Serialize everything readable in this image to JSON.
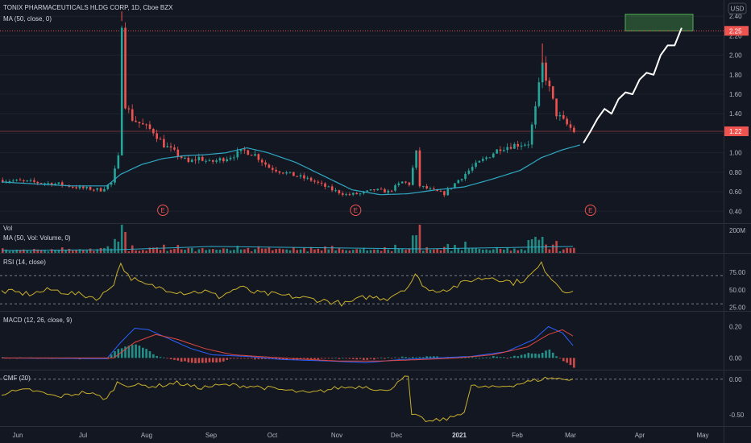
{
  "header": {
    "symbol_line": "TONIX PHARMACEUTICALS HLDG CORP, 1D, Cboe BZX",
    "ma_line": "MA (50, close, 0)",
    "currency": "USD"
  },
  "colors": {
    "up": "#26a69a",
    "down": "#ef5350",
    "ma": "#2fa8c2",
    "rsi": "#c9b02c",
    "macd": "#2962ff",
    "signal": "#e0473f",
    "cmf": "#c9b02c",
    "bg": "#131722",
    "grid": "#1e222d"
  },
  "chart_data": [
    {
      "type": "candlestick",
      "name_label": "TONIX PHARMACEUTICALS HLDG CORP, 1D, Cboe BZX",
      "y_ticks": [
        "2.40",
        "2.20",
        "2.00",
        "1.80",
        "1.60",
        "1.40",
        "1.20",
        "1.00",
        "0.80",
        "0.60",
        "0.40"
      ],
      "ylim": [
        0.32,
        2.5
      ],
      "price_labels": [
        "2.25",
        "1.22"
      ],
      "target_box": [
        2.25,
        2.42
      ],
      "earnings_markers": [
        "E",
        "E",
        "E"
      ],
      "x_ticks": [
        "Jun",
        "Jul",
        "Aug",
        "Sep",
        "Oct",
        "Nov",
        "Dec",
        "2021",
        "Feb",
        "Mar",
        "Apr",
        "May"
      ],
      "price_path": [
        [
          0,
          0.72
        ],
        [
          8,
          0.7
        ],
        [
          16,
          0.68
        ],
        [
          22,
          0.64
        ],
        [
          28,
          0.62
        ],
        [
          31,
          0.69
        ],
        [
          33,
          0.95
        ],
        [
          34,
          2.35
        ],
        [
          35,
          1.5
        ],
        [
          37,
          1.35
        ],
        [
          40,
          1.28
        ],
        [
          43,
          1.22
        ],
        [
          46,
          1.08
        ],
        [
          50,
          0.98
        ],
        [
          53,
          0.9
        ],
        [
          56,
          0.95
        ],
        [
          59,
          0.9
        ],
        [
          64,
          0.95
        ],
        [
          69,
          1.02
        ],
        [
          72,
          0.98
        ],
        [
          76,
          0.85
        ],
        [
          82,
          0.78
        ],
        [
          88,
          0.72
        ],
        [
          94,
          0.62
        ],
        [
          98,
          0.57
        ],
        [
          102,
          0.58
        ],
        [
          106,
          0.62
        ],
        [
          110,
          0.6
        ],
        [
          114,
          0.7
        ],
        [
          116,
          0.68
        ],
        [
          118,
          1.0
        ],
        [
          119,
          0.66
        ],
        [
          122,
          0.62
        ],
        [
          126,
          0.58
        ],
        [
          130,
          0.72
        ],
        [
          134,
          0.85
        ],
        [
          138,
          0.95
        ],
        [
          142,
          1.05
        ],
        [
          146,
          1.08
        ],
        [
          150,
          1.1
        ],
        [
          152,
          1.45
        ],
        [
          154,
          1.9
        ],
        [
          156,
          1.65
        ],
        [
          158,
          1.4
        ],
        [
          160,
          1.32
        ],
        [
          163,
          1.22
        ]
      ],
      "ma_path": [
        [
          0,
          0.7
        ],
        [
          20,
          0.66
        ],
        [
          30,
          0.66
        ],
        [
          34,
          0.78
        ],
        [
          40,
          0.88
        ],
        [
          46,
          0.94
        ],
        [
          52,
          0.97
        ],
        [
          58,
          0.98
        ],
        [
          64,
          1.0
        ],
        [
          70,
          1.05
        ],
        [
          76,
          1.0
        ],
        [
          84,
          0.9
        ],
        [
          92,
          0.76
        ],
        [
          100,
          0.62
        ],
        [
          108,
          0.57
        ],
        [
          116,
          0.58
        ],
        [
          124,
          0.62
        ],
        [
          132,
          0.65
        ],
        [
          140,
          0.73
        ],
        [
          148,
          0.82
        ],
        [
          154,
          0.95
        ],
        [
          160,
          1.03
        ],
        [
          165,
          1.08
        ]
      ],
      "projection": [
        [
          166,
          1.1
        ],
        [
          168,
          1.22
        ],
        [
          170,
          1.35
        ],
        [
          172,
          1.45
        ],
        [
          174,
          1.4
        ],
        [
          176,
          1.55
        ],
        [
          178,
          1.62
        ],
        [
          180,
          1.6
        ],
        [
          182,
          1.75
        ],
        [
          184,
          1.82
        ],
        [
          186,
          1.8
        ],
        [
          188,
          2.0
        ],
        [
          190,
          2.1
        ],
        [
          192,
          2.1
        ],
        [
          194,
          2.28
        ]
      ]
    },
    {
      "type": "bar",
      "label": "Vol",
      "ma_label": "MA (50, Vol: Volume, 0)",
      "y_ticks": [
        "200M"
      ]
    },
    {
      "type": "line",
      "label": "RSI (14, close)",
      "y_ticks": [
        "75.00",
        "50.00",
        "25.00"
      ],
      "ylim": [
        20,
        100
      ],
      "bands": [
        70,
        30
      ]
    },
    {
      "type": "line",
      "label": "MACD (12, 26, close, 9)",
      "y_ticks": [
        "0.20",
        "0.00"
      ],
      "ylim": [
        -0.07,
        0.28
      ]
    },
    {
      "type": "line",
      "label": "CMF (20)",
      "y_ticks": [
        "0.00",
        "-0.50"
      ],
      "ylim": [
        -0.65,
        0.1
      ]
    }
  ]
}
